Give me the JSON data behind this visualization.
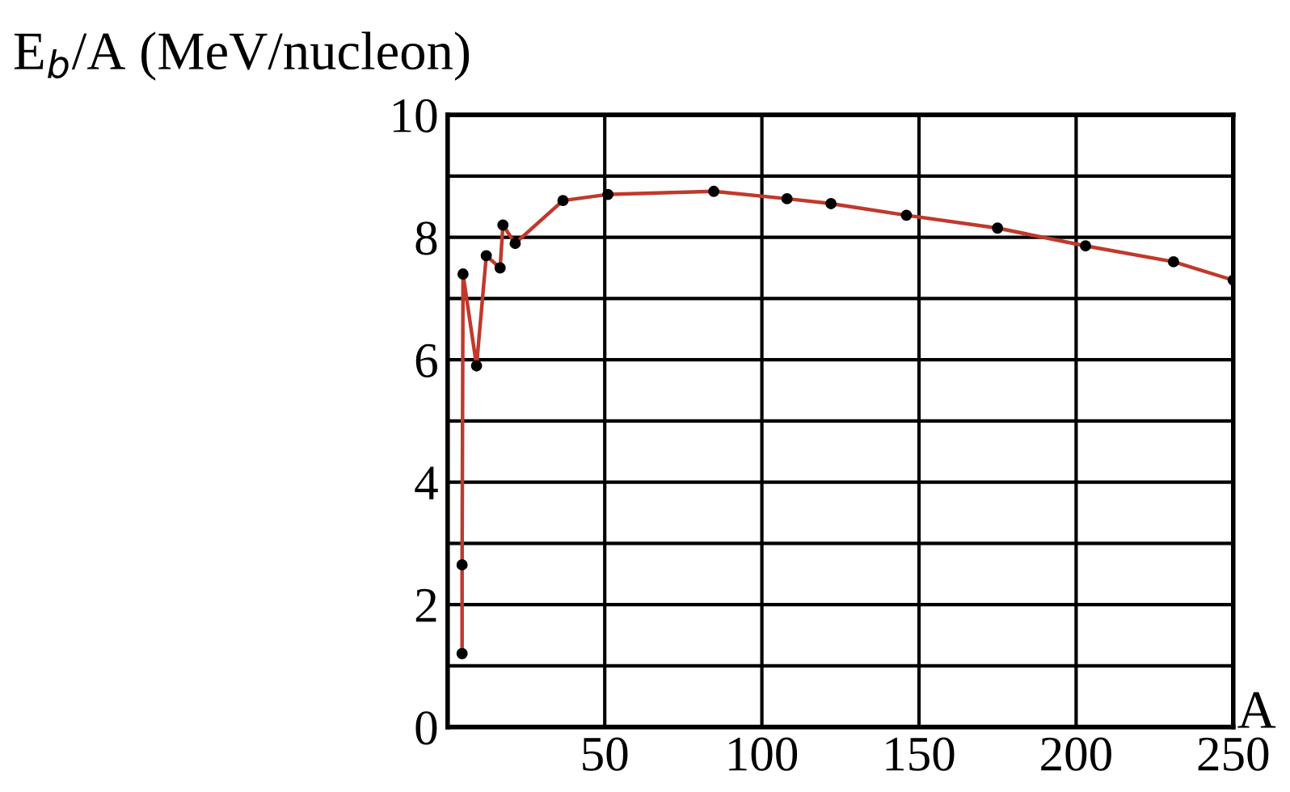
{
  "chart_data": {
    "type": "line",
    "ylabel": "E$_{b}$/A (MeV/nucleon)",
    "xlabel": "A",
    "x": [
      4.6,
      4.6,
      4.9,
      9.2,
      12.3,
      16.7,
      17.6,
      21.5,
      36.7,
      51,
      84.7,
      108,
      122,
      146,
      175,
      203,
      231,
      250
    ],
    "series": [
      {
        "color": "#c0392b",
        "values": [
          1.2,
          2.65,
          7.4,
          5.9,
          7.7,
          7.5,
          8.2,
          7.9,
          8.6,
          8.7,
          8.75,
          8.63,
          8.55,
          8.36,
          8.15,
          7.86,
          7.6,
          7.3
        ]
      }
    ],
    "xlim": [
      0,
      250
    ],
    "ylim": [
      0,
      10
    ],
    "xticks": [
      {
        "value": 0,
        "label": null
      },
      50,
      100,
      150,
      200,
      250
    ],
    "yticks": [
      0,
      {
        "value": 1,
        "label": null
      },
      2,
      {
        "value": 3,
        "label": null
      },
      4,
      {
        "value": 5,
        "label": null
      },
      6,
      {
        "value": 7,
        "label": null
      },
      8,
      {
        "value": 9,
        "label": null
      },
      10
    ],
    "grid": true,
    "marker": "circle",
    "line_style": "solid"
  }
}
